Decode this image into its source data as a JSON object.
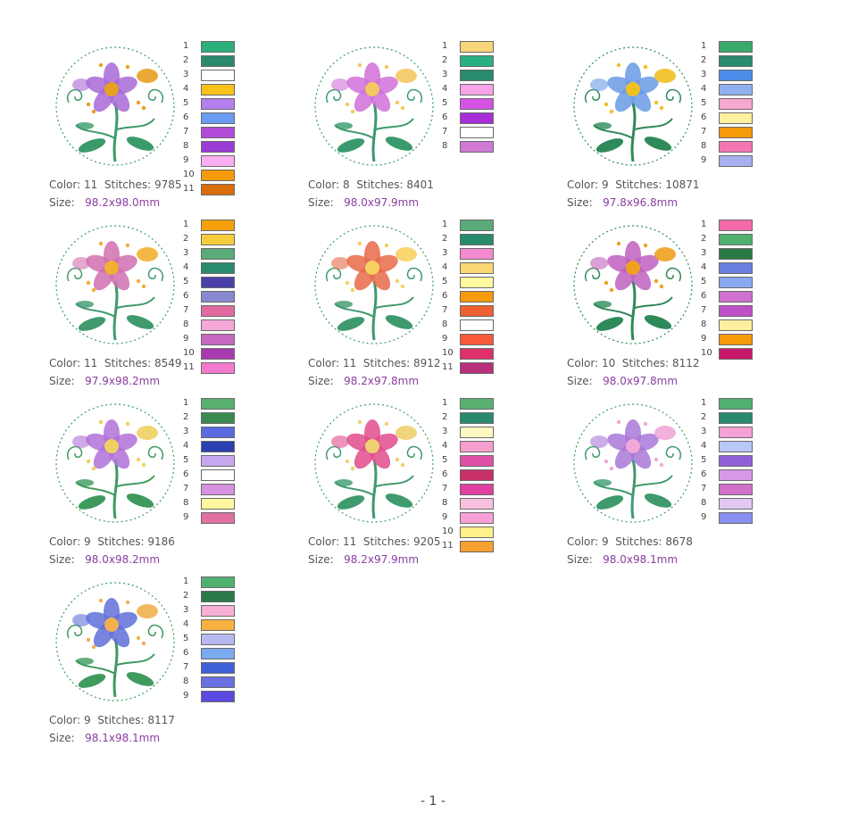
{
  "designs": [
    {
      "color_label": "Color: 11",
      "stitches_label": "Stitches: 9785",
      "size_label": "Size:",
      "size_value": "98.2x98.0mm",
      "swatches": [
        {
          "n": "1",
          "c": "#2bb07c"
        },
        {
          "n": "2",
          "c": "#2a8a6e"
        },
        {
          "n": "3",
          "c": "#ffffff"
        },
        {
          "n": "4",
          "c": "#f8c21a"
        },
        {
          "n": "5",
          "c": "#b480f0"
        },
        {
          "n": "6",
          "c": "#6b9bf2"
        },
        {
          "n": "7",
          "c": "#b24ad8"
        },
        {
          "n": "8",
          "c": "#9a3bd6"
        },
        {
          "n": "9",
          "c": "#f9aef0"
        },
        {
          "n": "10",
          "c": "#f59a0a"
        },
        {
          "n": "11",
          "c": "#d96d0a"
        }
      ],
      "theme": {
        "petal": "#a868d8",
        "accent": "#e8a020",
        "leaf": "#3b9a6a"
      }
    },
    {
      "color_label": "Color: 8",
      "stitches_label": "Stitches: 8401",
      "size_label": "Size:",
      "size_value": "98.0x97.9mm",
      "swatches": [
        {
          "n": "1",
          "c": "#f8d57a"
        },
        {
          "n": "2",
          "c": "#28b084"
        },
        {
          "n": "3",
          "c": "#2a8a6e"
        },
        {
          "n": "4",
          "c": "#f6a3e8"
        },
        {
          "n": "5",
          "c": "#d452e6"
        },
        {
          "n": "6",
          "c": "#a82fd8"
        },
        {
          "n": "7",
          "c": "#ffffff"
        },
        {
          "n": "8",
          "c": "#d07ad6"
        }
      ],
      "theme": {
        "petal": "#d070d8",
        "accent": "#f3c860",
        "leaf": "#3a9a6e"
      }
    },
    {
      "color_label": "Color: 9",
      "stitches_label": "Stitches: 10871",
      "size_label": "Size:",
      "size_value": "97.8x96.8mm",
      "swatches": [
        {
          "n": "1",
          "c": "#3aaa6a"
        },
        {
          "n": "2",
          "c": "#2a8a6e"
        },
        {
          "n": "3",
          "c": "#4a8de8"
        },
        {
          "n": "4",
          "c": "#8fb0ee"
        },
        {
          "n": "5",
          "c": "#f7a8d0"
        },
        {
          "n": "6",
          "c": "#fff0a0"
        },
        {
          "n": "7",
          "c": "#f59a0a"
        },
        {
          "n": "8",
          "c": "#f476b4"
        },
        {
          "n": "9",
          "c": "#a7b0f0"
        }
      ],
      "theme": {
        "petal": "#6a9ae6",
        "accent": "#f0c020",
        "leaf": "#2f8a5a"
      }
    },
    {
      "color_label": "Color: 11",
      "stitches_label": "Stitches: 8549",
      "size_label": "Size:",
      "size_value": "97.9x98.2mm",
      "swatches": [
        {
          "n": "1",
          "c": "#f5a00a"
        },
        {
          "n": "2",
          "c": "#f6cc3a"
        },
        {
          "n": "3",
          "c": "#5aaa7a"
        },
        {
          "n": "4",
          "c": "#2a8a6e"
        },
        {
          "n": "5",
          "c": "#4a40a8"
        },
        {
          "n": "6",
          "c": "#8888d0"
        },
        {
          "n": "7",
          "c": "#e06aa0"
        },
        {
          "n": "8",
          "c": "#f6a8d8"
        },
        {
          "n": "9",
          "c": "#c868c0"
        },
        {
          "n": "10",
          "c": "#a83ab0"
        },
        {
          "n": "11",
          "c": "#f47ad0"
        }
      ],
      "theme": {
        "petal": "#d070b0",
        "accent": "#f2b030",
        "leaf": "#3f9a6e"
      }
    },
    {
      "color_label": "Color: 11",
      "stitches_label": "Stitches: 8912",
      "size_label": "Size:",
      "size_value": "98.2x97.8mm",
      "swatches": [
        {
          "n": "1",
          "c": "#5aaa7a"
        },
        {
          "n": "2",
          "c": "#2a8a6e"
        },
        {
          "n": "3",
          "c": "#f48ad0"
        },
        {
          "n": "4",
          "c": "#f8d870"
        },
        {
          "n": "5",
          "c": "#fffaa0"
        },
        {
          "n": "6",
          "c": "#f59a0a"
        },
        {
          "n": "7",
          "c": "#f06030"
        },
        {
          "n": "8",
          "c": "#ffffff"
        },
        {
          "n": "9",
          "c": "#f85a3a"
        },
        {
          "n": "10",
          "c": "#e0306a"
        },
        {
          "n": "11",
          "c": "#b8307a"
        }
      ],
      "theme": {
        "petal": "#e86a4a",
        "accent": "#f6d060",
        "leaf": "#3f9a6e"
      }
    },
    {
      "color_label": "Color: 10",
      "stitches_label": "Stitches: 8112",
      "size_label": "Size:",
      "size_value": "98.0x97.8mm",
      "swatches": [
        {
          "n": "1",
          "c": "#f46aa8"
        },
        {
          "n": "2",
          "c": "#50b070"
        },
        {
          "n": "3",
          "c": "#2a7a48"
        },
        {
          "n": "4",
          "c": "#6a80e0"
        },
        {
          "n": "5",
          "c": "#8aa8f0"
        },
        {
          "n": "6",
          "c": "#d070d0"
        },
        {
          "n": "7",
          "c": "#c050c8"
        },
        {
          "n": "8",
          "c": "#fff0a0"
        },
        {
          "n": "9",
          "c": "#f59a0a"
        },
        {
          "n": "10",
          "c": "#c8186a"
        }
      ],
      "theme": {
        "petal": "#c060c0",
        "accent": "#f0a020",
        "leaf": "#2f8a5a"
      }
    },
    {
      "color_label": "Color: 9",
      "stitches_label": "Stitches: 9186",
      "size_label": "Size:",
      "size_value": "98.0x98.2mm",
      "swatches": [
        {
          "n": "1",
          "c": "#5ab070"
        },
        {
          "n": "2",
          "c": "#3a8a50"
        },
        {
          "n": "3",
          "c": "#5a6ae0"
        },
        {
          "n": "4",
          "c": "#2a40b0"
        },
        {
          "n": "5",
          "c": "#c8a8f0"
        },
        {
          "n": "6",
          "c": "#ffffff"
        },
        {
          "n": "7",
          "c": "#d890e0"
        },
        {
          "n": "8",
          "c": "#fff8a0"
        },
        {
          "n": "9",
          "c": "#e070a0"
        }
      ],
      "theme": {
        "petal": "#b070d8",
        "accent": "#f0d060",
        "leaf": "#3f9a5e"
      }
    },
    {
      "color_label": "Color: 11",
      "stitches_label": "Stitches: 9205",
      "size_label": "Size:",
      "size_value": "98.2x97.9mm",
      "swatches": [
        {
          "n": "1",
          "c": "#5ab070"
        },
        {
          "n": "2",
          "c": "#2a8a6e"
        },
        {
          "n": "3",
          "c": "#fff8c0"
        },
        {
          "n": "4",
          "c": "#f6a0d0"
        },
        {
          "n": "5",
          "c": "#e050a8"
        },
        {
          "n": "6",
          "c": "#c8306a"
        },
        {
          "n": "7",
          "c": "#e040a0"
        },
        {
          "n": "8",
          "c": "#f8c0e0"
        },
        {
          "n": "9",
          "c": "#f8a0d8"
        },
        {
          "n": "10",
          "c": "#fff08a"
        },
        {
          "n": "11",
          "c": "#f5a030"
        }
      ],
      "theme": {
        "petal": "#e04c8c",
        "accent": "#f0d070",
        "leaf": "#3f9a6e"
      }
    },
    {
      "color_label": "Color: 9",
      "stitches_label": "Stitches: 8678",
      "size_label": "Size:",
      "size_value": "98.0x98.1mm",
      "swatches": [
        {
          "n": "1",
          "c": "#50b070"
        },
        {
          "n": "2",
          "c": "#2a8a6e"
        },
        {
          "n": "3",
          "c": "#f6a0d8"
        },
        {
          "n": "4",
          "c": "#b8c8f6"
        },
        {
          "n": "5",
          "c": "#9060d8"
        },
        {
          "n": "6",
          "c": "#d898e8"
        },
        {
          "n": "7",
          "c": "#d070c8"
        },
        {
          "n": "8",
          "c": "#e0c8f0"
        },
        {
          "n": "9",
          "c": "#8a90f0"
        }
      ],
      "theme": {
        "petal": "#a878d8",
        "accent": "#f0a8d8",
        "leaf": "#3f9a6e"
      }
    },
    {
      "color_label": "Color: 9",
      "stitches_label": "Stitches: 8117",
      "size_label": "Size:",
      "size_value": "98.1x98.1mm",
      "swatches": [
        {
          "n": "1",
          "c": "#50b070"
        },
        {
          "n": "2",
          "c": "#2a7a48"
        },
        {
          "n": "3",
          "c": "#f8b0d8"
        },
        {
          "n": "4",
          "c": "#f8b040"
        },
        {
          "n": "5",
          "c": "#b8b8f0"
        },
        {
          "n": "6",
          "c": "#7aaaf0"
        },
        {
          "n": "7",
          "c": "#4060d8"
        },
        {
          "n": "8",
          "c": "#6a70e0"
        },
        {
          "n": "9",
          "c": "#5a4ae0"
        }
      ],
      "theme": {
        "petal": "#6070d8",
        "accent": "#f0b050",
        "leaf": "#3f9a5e"
      }
    }
  ],
  "footer": {
    "page_label": "- 1 -"
  }
}
